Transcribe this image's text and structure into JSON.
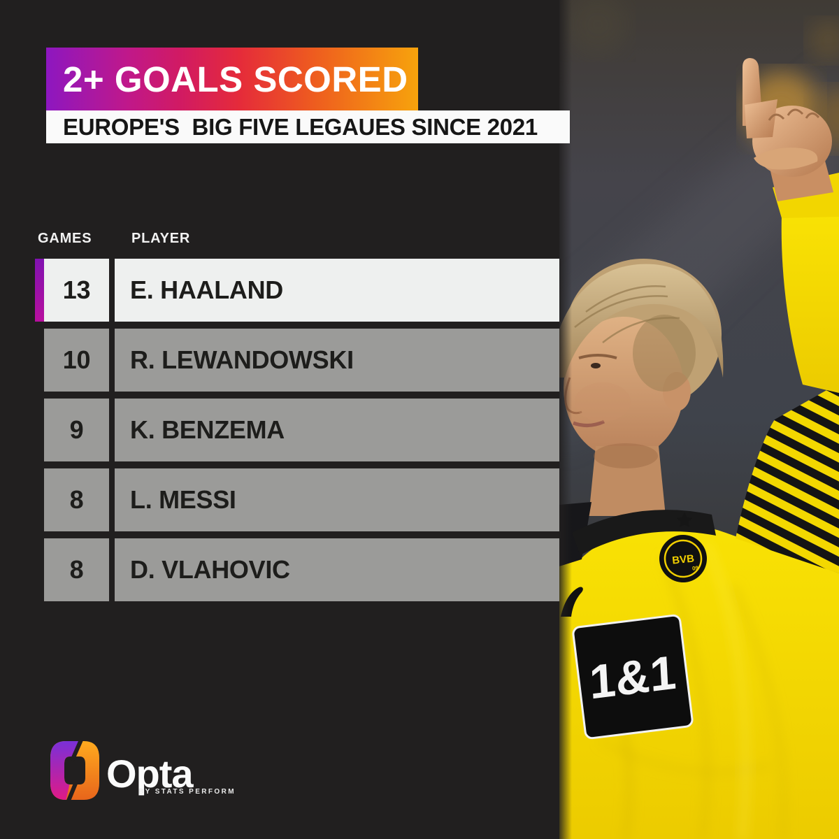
{
  "header": {
    "title": "2+ GOALS SCORED",
    "subtitle": "EUROPE'S  BIG FIVE LEGAUES SINCE 2021"
  },
  "table": {
    "columns": [
      "GAMES",
      "PLAYER"
    ],
    "rows": [
      {
        "games": "13",
        "player": "E. HAALAND",
        "highlight": true
      },
      {
        "games": "10",
        "player": "R. LEWANDOWSKI",
        "highlight": false
      },
      {
        "games": "9",
        "player": "K. BENZEMA",
        "highlight": false
      },
      {
        "games": "8",
        "player": "L. MESSI",
        "highlight": false
      },
      {
        "games": "8",
        "player": "D. VLAHOVIC",
        "highlight": false
      }
    ]
  },
  "photo": {
    "subject": "Erling Haaland pointing up in yellow Borussia Dortmund shirt",
    "sponsor": "1&1",
    "badge": "BVB",
    "badge_number": "09"
  },
  "brand": {
    "name": "Opta",
    "sub": "BY STATS PERFORM"
  },
  "colors": {
    "background": "#211f1f",
    "banner_gradient": [
      "#8d17c0",
      "#d11a63",
      "#e52b3a",
      "#f7a30c"
    ],
    "highlight_strip": [
      "#8012b0",
      "#b80f9e"
    ],
    "row_highlight_bg": "#eef0ef",
    "row_bg": "#9b9b99",
    "row_text": "#1d1d1b",
    "shirt_yellow": "#f2d600"
  },
  "chart_data": {
    "type": "table",
    "title": "2+ GOALS SCORED",
    "subtitle": "EUROPE'S  BIG FIVE LEGAUES SINCE 2021",
    "columns": [
      "GAMES",
      "PLAYER"
    ],
    "rows": [
      [
        13,
        "E. HAALAND"
      ],
      [
        10,
        "R. LEWANDOWSKI"
      ],
      [
        9,
        "K. BENZEMA"
      ],
      [
        8,
        "L. MESSI"
      ],
      [
        8,
        "D. VLAHOVIC"
      ]
    ],
    "highlighted_row": "E. HAALAND",
    "legend_position": "none",
    "grid": false
  }
}
